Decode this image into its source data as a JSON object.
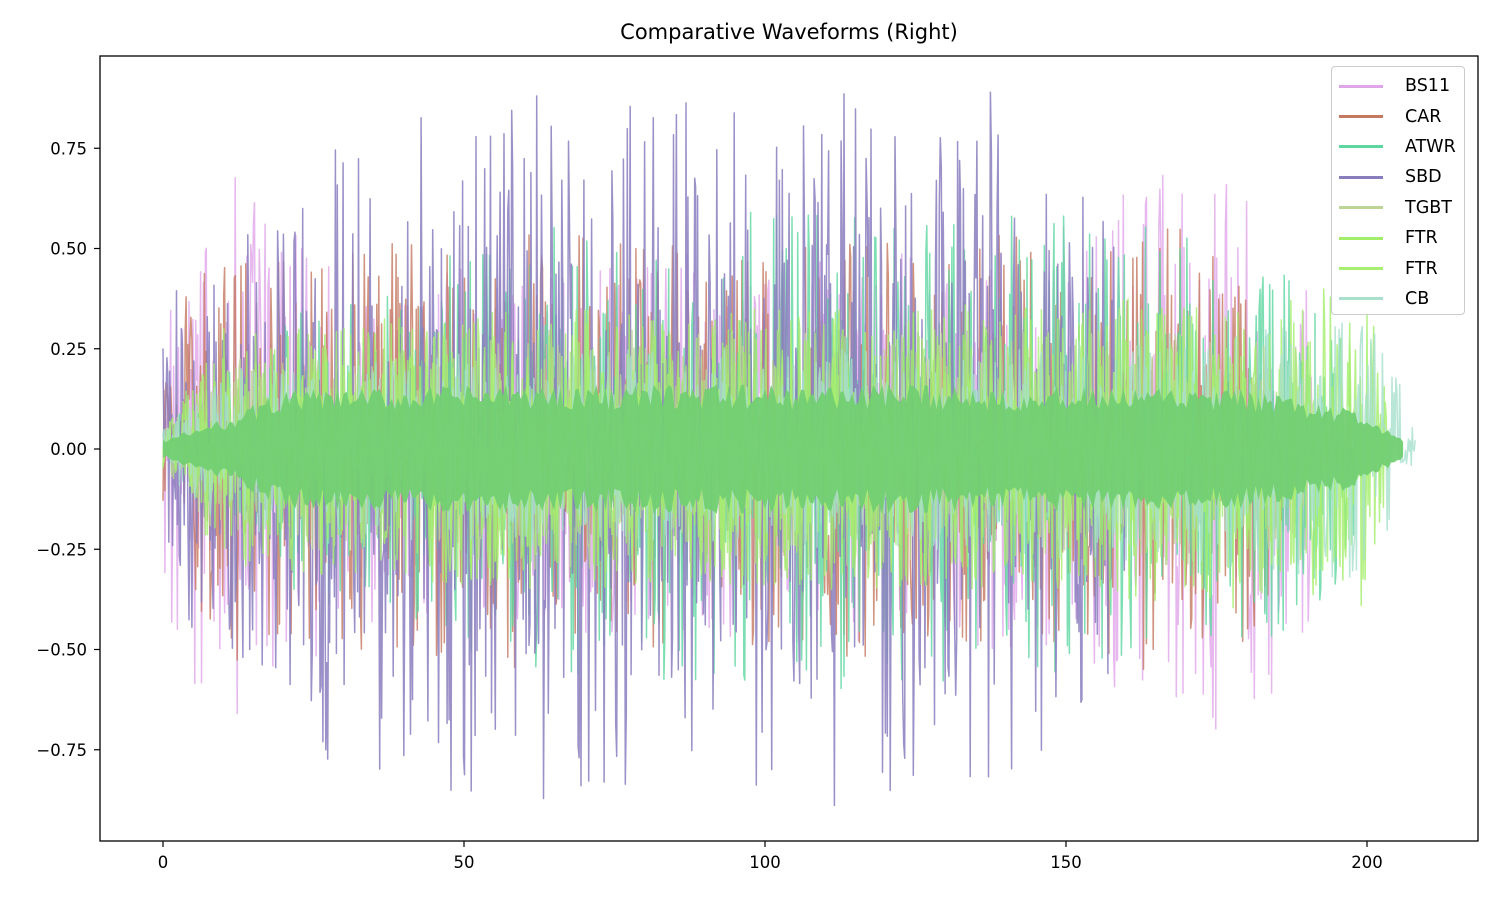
{
  "title": "Comparative Waveforms (Right)",
  "axes": {
    "x_ticks": [
      {
        "value": 0,
        "label": "0"
      },
      {
        "value": 50,
        "label": "50"
      },
      {
        "value": 100,
        "label": "100"
      },
      {
        "value": 150,
        "label": "150"
      },
      {
        "value": 200,
        "label": "200"
      }
    ],
    "y_ticks": [
      {
        "value": 0.75,
        "label": "0.75"
      },
      {
        "value": 0.5,
        "label": "0.50"
      },
      {
        "value": 0.25,
        "label": "0.25"
      },
      {
        "value": 0.0,
        "label": "0.00"
      },
      {
        "value": -0.25,
        "label": "−0.25"
      },
      {
        "value": -0.5,
        "label": "−0.50"
      },
      {
        "value": -0.75,
        "label": "−0.75"
      }
    ]
  },
  "legend": [
    {
      "label": "BS11",
      "color": "#e0a6ea"
    },
    {
      "label": "CAR",
      "color": "#c47860"
    },
    {
      "label": "ATWR",
      "color": "#5ed6a0"
    },
    {
      "label": "SBD",
      "color": "#8a7dbd"
    },
    {
      "label": "TGBT",
      "color": "#bcd494"
    },
    {
      "label": "FTR",
      "color": "#a2ee6a"
    },
    {
      "label": "FTR",
      "color": "#a6ef70"
    },
    {
      "label": "CB",
      "color": "#a8e0cc"
    }
  ],
  "chart_data": {
    "type": "line",
    "title": "Comparative Waveforms (Right)",
    "xlabel": "",
    "ylabel": "",
    "xlim": [
      -10.4,
      218.6
    ],
    "ylim": [
      -0.98,
      0.98
    ],
    "grid": false,
    "legend_position": "upper right",
    "x_tick_labels": [
      "0",
      "50",
      "100",
      "150",
      "200"
    ],
    "y_tick_labels": [
      "0.75",
      "0.50",
      "0.25",
      "0.00",
      "−0.25",
      "−0.50",
      "−0.75"
    ],
    "series": [
      {
        "name": "BS11",
        "color": "#e0a6ea",
        "alpha": 0.8,
        "x_end": 191,
        "envelope_x": [
          0,
          5,
          12,
          30,
          60,
          100,
          140,
          170,
          185,
          191
        ],
        "envelope_peak": [
          0.4,
          0.6,
          0.73,
          0.45,
          0.45,
          0.5,
          0.5,
          0.74,
          0.62,
          0.45
        ]
      },
      {
        "name": "CAR",
        "color": "#c47860",
        "alpha": 0.8,
        "x_end": 186,
        "envelope_x": [
          0,
          5,
          12,
          30,
          60,
          100,
          140,
          170,
          180,
          186
        ],
        "envelope_peak": [
          0.25,
          0.45,
          0.53,
          0.5,
          0.55,
          0.5,
          0.55,
          0.55,
          0.55,
          0.4
        ]
      },
      {
        "name": "ATWR",
        "color": "#5ed6a0",
        "alpha": 0.8,
        "x_end": 198,
        "envelope_x": [
          0,
          10,
          20,
          60,
          100,
          140,
          165,
          185,
          198
        ],
        "envelope_peak": [
          0.05,
          0.2,
          0.35,
          0.55,
          0.6,
          0.6,
          0.55,
          0.5,
          0.3
        ]
      },
      {
        "name": "SBD",
        "color": "#8a7dbd",
        "alpha": 0.85,
        "x_end": 160,
        "envelope_x": [
          0,
          10,
          30,
          45,
          55,
          78,
          87,
          105,
          110,
          139,
          150,
          160
        ],
        "envelope_peak": [
          0.35,
          0.6,
          0.8,
          0.85,
          0.88,
          0.89,
          0.89,
          0.89,
          0.89,
          0.89,
          0.7,
          0.5
        ]
      },
      {
        "name": "TGBT",
        "color": "#bcd494",
        "alpha": 0.8,
        "x_end": 197,
        "envelope_x": [
          0,
          10,
          60,
          120,
          180,
          197
        ],
        "envelope_peak": [
          0.05,
          0.25,
          0.3,
          0.3,
          0.3,
          0.1
        ]
      },
      {
        "name": "FTR",
        "color": "#a2ee6a",
        "alpha": 0.8,
        "x_end": 203,
        "envelope_x": [
          0,
          10,
          60,
          120,
          180,
          200,
          203
        ],
        "envelope_peak": [
          0.05,
          0.3,
          0.35,
          0.35,
          0.4,
          0.4,
          0.15
        ]
      },
      {
        "name": "FTR",
        "color": "#a6ef70",
        "alpha": 0.8,
        "x_end": 204,
        "envelope_x": [
          0,
          10,
          60,
          120,
          180,
          200,
          204
        ],
        "envelope_peak": [
          0.05,
          0.3,
          0.35,
          0.35,
          0.35,
          0.3,
          0.1
        ]
      },
      {
        "name": "CB",
        "color": "#a8e0cc",
        "alpha": 0.8,
        "x_end": 208,
        "envelope_x": [
          0,
          10,
          60,
          120,
          180,
          200,
          205,
          208
        ],
        "envelope_peak": [
          0.05,
          0.2,
          0.25,
          0.25,
          0.3,
          0.35,
          0.2,
          0.03
        ]
      }
    ],
    "core_band": {
      "color": "#72cf72",
      "envelope_x": [
        0,
        10,
        20,
        60,
        120,
        180,
        198,
        206
      ],
      "envelope_peak": [
        0.02,
        0.06,
        0.12,
        0.13,
        0.13,
        0.12,
        0.08,
        0.02
      ]
    }
  }
}
